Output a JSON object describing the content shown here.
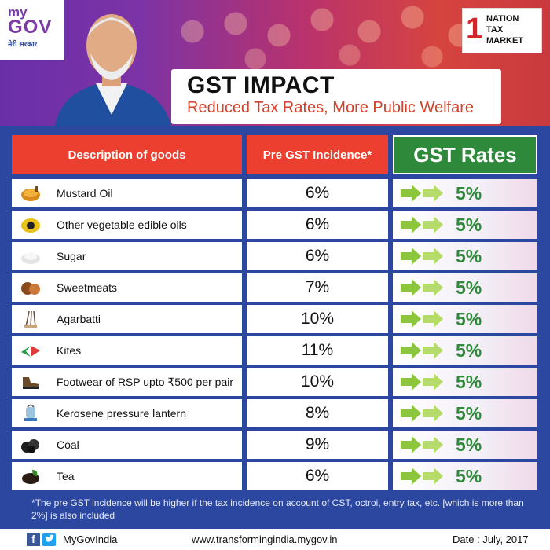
{
  "logos": {
    "mygov_my": "my",
    "mygov_gov": "GOV",
    "mygov_sub": "मेरी सरकार",
    "ntm_number": "1",
    "ntm_lines": [
      "NATION",
      "TAX",
      "MARKET"
    ]
  },
  "title": {
    "main": "GST IMPACT",
    "sub": "Reduced Tax Rates, More Public Welfare"
  },
  "table": {
    "headers": {
      "description": "Description of goods",
      "pre_gst": "Pre GST Incidence*",
      "gst": "GST Rates"
    },
    "rows": [
      {
        "icon": "mustard-oil-icon",
        "label": "Mustard Oil",
        "pre": "6%",
        "gst": "5%"
      },
      {
        "icon": "edible-oil-icon",
        "label": "Other vegetable edible oils",
        "pre": "6%",
        "gst": "5%"
      },
      {
        "icon": "sugar-icon",
        "label": "Sugar",
        "pre": "6%",
        "gst": "5%"
      },
      {
        "icon": "sweetmeats-icon",
        "label": "Sweetmeats",
        "pre": "7%",
        "gst": "5%"
      },
      {
        "icon": "agarbatti-icon",
        "label": "Agarbatti",
        "pre": "10%",
        "gst": "5%"
      },
      {
        "icon": "kite-icon",
        "label": "Kites",
        "pre": "11%",
        "gst": "5%"
      },
      {
        "icon": "footwear-icon",
        "label": "Footwear of RSP upto ₹500 per pair",
        "pre": "10%",
        "gst": "5%"
      },
      {
        "icon": "lantern-icon",
        "label": "Kerosene pressure lantern",
        "pre": "8%",
        "gst": "5%"
      },
      {
        "icon": "coal-icon",
        "label": "Coal",
        "pre": "9%",
        "gst": "5%"
      },
      {
        "icon": "tea-icon",
        "label": "Tea",
        "pre": "6%",
        "gst": "5%"
      }
    ]
  },
  "footnote": "*The pre GST incidence will be higher if the tax incidence on account of CST, octroi, entry tax, etc. [which is more than 2%] is also included",
  "footer": {
    "facebook_letter": "f",
    "handle": "MyGovIndia",
    "url": "www.transformingindia.mygov.in",
    "date": "Date : July, 2017"
  },
  "colors": {
    "header_red": "#ec3f2f",
    "gst_green": "#2e8a3a",
    "background_blue": "#2c47a0",
    "brand_purple": "#7c3aa6"
  }
}
